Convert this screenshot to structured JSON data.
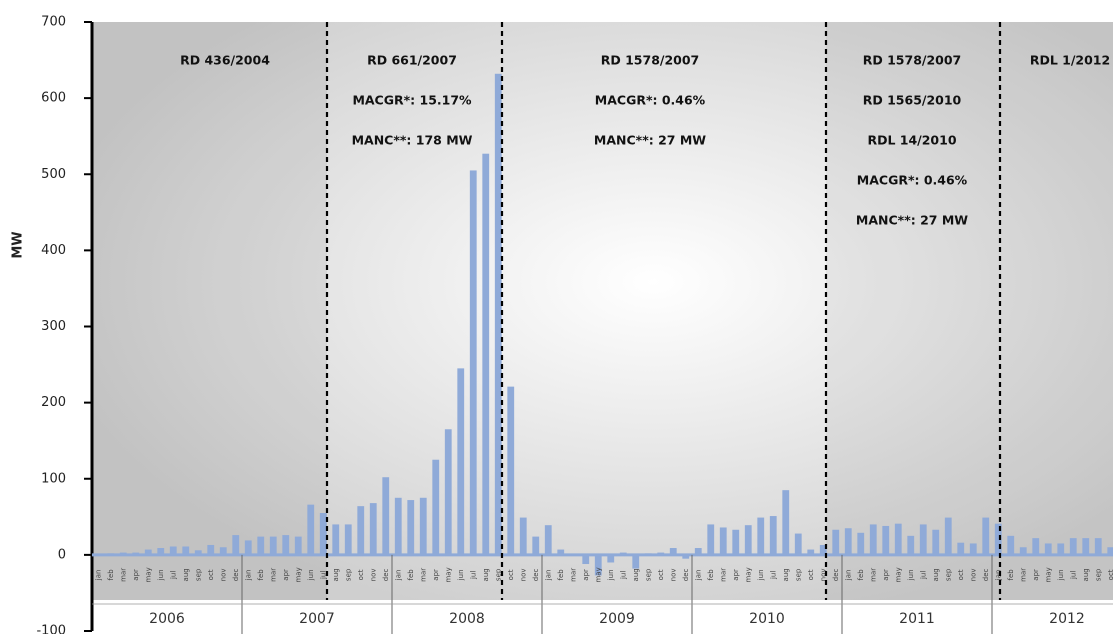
{
  "chart_data": {
    "type": "bar",
    "ylabel": "MW",
    "color": "#8faad8",
    "ylim": [
      -100,
      700
    ],
    "yticks": [
      -100,
      0,
      100,
      200,
      300,
      400,
      500,
      600,
      700
    ],
    "years": [
      "2006",
      "2007",
      "2008",
      "2009",
      "2010",
      "2011",
      "2012"
    ],
    "categories": [
      "jan",
      "feb",
      "mar",
      "apr",
      "may",
      "jun",
      "jul",
      "aug",
      "sep",
      "oct",
      "nov",
      "dec",
      "jan",
      "feb",
      "mar",
      "apr",
      "may",
      "jun",
      "jul",
      "aug",
      "sep",
      "oct",
      "nov",
      "dec",
      "jan",
      "feb",
      "mar",
      "apr",
      "may",
      "jun",
      "jul",
      "aug",
      "sep",
      "oct",
      "nov",
      "dec",
      "jan",
      "feb",
      "mar",
      "apr",
      "may",
      "jun",
      "jul",
      "aug",
      "sep",
      "oct",
      "nov",
      "dec",
      "jan",
      "feb",
      "mar",
      "apr",
      "may",
      "jun",
      "jul",
      "aug",
      "sep",
      "oct",
      "nov",
      "dec",
      "jan",
      "feb",
      "mar",
      "apr",
      "may",
      "jun",
      "jul",
      "aug",
      "sep",
      "oct",
      "nov",
      "dec",
      "jan",
      "feb",
      "mar",
      "apr",
      "may",
      "jun",
      "jul",
      "aug",
      "sep",
      "oct"
    ],
    "values": [
      1,
      2,
      3,
      3,
      7,
      9,
      11,
      11,
      6,
      13,
      10,
      26,
      19,
      24,
      24,
      26,
      24,
      66,
      55,
      40,
      40,
      64,
      68,
      102,
      75,
      72,
      75,
      125,
      165,
      245,
      505,
      527,
      632,
      221,
      49,
      24,
      39,
      7,
      0,
      -12,
      -27,
      -10,
      3,
      -18,
      2,
      3,
      9,
      -5,
      9,
      40,
      36,
      33,
      39,
      49,
      51,
      85,
      28,
      7,
      13,
      33,
      35,
      29,
      40,
      38,
      41,
      25,
      40,
      33,
      49,
      16,
      15,
      49,
      41,
      25,
      10,
      22,
      15,
      15,
      22,
      22,
      22,
      10
    ],
    "annotations": [
      {
        "lines": [
          "RD 436/2004"
        ]
      },
      {
        "lines": [
          "RD 661/2007",
          "MACGR*:  15.17%",
          "MANC**: 178 MW"
        ]
      },
      {
        "lines": [
          "RD 1578/2007",
          "MACGR*:  0.46%",
          "MANC**: 27 MW"
        ]
      },
      {
        "lines": [
          "RD 1578/2007",
          "RD 1565/2010",
          "RDL 14/2010",
          "MACGR*:  0.46%",
          "MANC**: 27 MW"
        ]
      },
      {
        "lines": [
          "RDL 1/2012"
        ]
      }
    ]
  }
}
